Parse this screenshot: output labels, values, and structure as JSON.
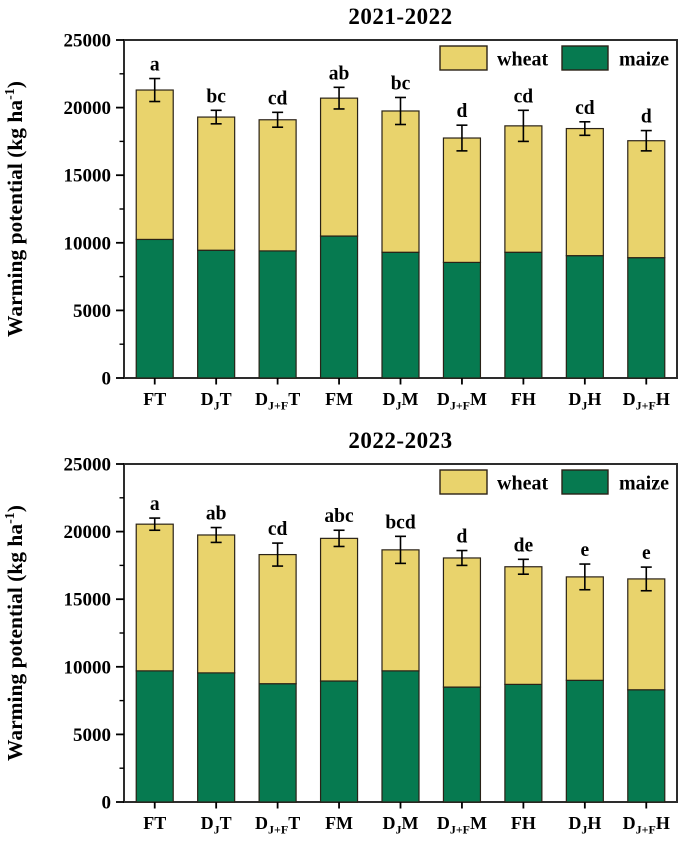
{
  "figure_background": "#ffffff",
  "colors": {
    "wheat": "#e9d36c",
    "maize": "#067a50",
    "bar_outline": "#2a2217",
    "frame": "#2d2d2d",
    "text": "#000000"
  },
  "chart_data": [
    {
      "type": "bar",
      "stacked": true,
      "title": "2021-2022",
      "ylabel": {
        "text": "Warming potential (kg ha",
        "sup": "-1",
        "end": ")"
      },
      "xlabel": "",
      "ylim": [
        0,
        25000
      ],
      "yticks": [
        "0",
        "5000",
        "10000",
        "15000",
        "20000",
        "25000"
      ],
      "ytick_values": [
        0,
        5000,
        10000,
        15000,
        20000,
        25000
      ],
      "minor_tick_values": [
        2500,
        7500,
        12500,
        17500,
        22500
      ],
      "grid": false,
      "legend_position": "top-right-inside",
      "legend": [
        {
          "label": "wheat",
          "color": "#e9d36c"
        },
        {
          "label": "maize",
          "color": "#067a50"
        }
      ],
      "categories": [
        {
          "pre": "FT",
          "sub": "",
          "post": ""
        },
        {
          "pre": "D",
          "sub": "J",
          "post": "T"
        },
        {
          "pre": "D",
          "sub": "J+F",
          "post": "T"
        },
        {
          "pre": "FM",
          "sub": "",
          "post": ""
        },
        {
          "pre": "D",
          "sub": "J",
          "post": "M"
        },
        {
          "pre": "D",
          "sub": "J+F",
          "post": "M"
        },
        {
          "pre": "FH",
          "sub": "",
          "post": ""
        },
        {
          "pre": "D",
          "sub": "J",
          "post": "H"
        },
        {
          "pre": "D",
          "sub": "J+F",
          "post": "H"
        }
      ],
      "series": [
        {
          "name": "maize",
          "color": "#067a50",
          "values": [
            10250,
            9450,
            9400,
            10500,
            9300,
            8550,
            9300,
            9050,
            8900
          ]
        },
        {
          "name": "wheat",
          "color": "#e9d36c",
          "values": [
            11050,
            9850,
            9700,
            10200,
            10450,
            9200,
            9350,
            9400,
            8650
          ]
        }
      ],
      "totals": [
        21300,
        19300,
        19100,
        20700,
        19750,
        17750,
        18650,
        18450,
        17550
      ],
      "errors": [
        850,
        500,
        550,
        800,
        1000,
        950,
        1150,
        500,
        750
      ],
      "sig_letters": [
        "a",
        "bc",
        "cd",
        "ab",
        "bc",
        "d",
        "cd",
        "cd",
        "d"
      ]
    },
    {
      "type": "bar",
      "stacked": true,
      "title": "2022-2023",
      "ylabel": {
        "text": "Warming potential (kg ha",
        "sup": "-1",
        "end": ")"
      },
      "xlabel": "",
      "ylim": [
        0,
        25000
      ],
      "yticks": [
        "0",
        "5000",
        "10000",
        "15000",
        "20000",
        "25000"
      ],
      "ytick_values": [
        0,
        5000,
        10000,
        15000,
        20000,
        25000
      ],
      "minor_tick_values": [
        2500,
        7500,
        12500,
        17500,
        22500
      ],
      "grid": false,
      "legend_position": "top-right-inside",
      "legend": [
        {
          "label": "wheat",
          "color": "#e9d36c"
        },
        {
          "label": "maize",
          "color": "#067a50"
        }
      ],
      "categories": [
        {
          "pre": "FT",
          "sub": "",
          "post": ""
        },
        {
          "pre": "D",
          "sub": "J",
          "post": "T"
        },
        {
          "pre": "D",
          "sub": "J+F",
          "post": "T"
        },
        {
          "pre": "FM",
          "sub": "",
          "post": ""
        },
        {
          "pre": "D",
          "sub": "J",
          "post": "M"
        },
        {
          "pre": "D",
          "sub": "J+F",
          "post": "M"
        },
        {
          "pre": "FH",
          "sub": "",
          "post": ""
        },
        {
          "pre": "D",
          "sub": "J",
          "post": "H"
        },
        {
          "pre": "D",
          "sub": "J+F",
          "post": "H"
        }
      ],
      "series": [
        {
          "name": "maize",
          "color": "#067a50",
          "values": [
            9700,
            9550,
            8750,
            8950,
            9700,
            8500,
            8700,
            9000,
            8300
          ]
        },
        {
          "name": "wheat",
          "color": "#e9d36c",
          "values": [
            10850,
            10200,
            9550,
            10550,
            8950,
            9550,
            8700,
            7650,
            8200
          ]
        }
      ],
      "totals": [
        20550,
        19750,
        18300,
        19500,
        18650,
        18050,
        17400,
        16650,
        16500
      ],
      "errors": [
        450,
        550,
        850,
        600,
        1000,
        550,
        550,
        950,
        875
      ],
      "sig_letters": [
        "a",
        "ab",
        "cd",
        "abc",
        "bcd",
        "d",
        "de",
        "e",
        "e"
      ]
    }
  ]
}
